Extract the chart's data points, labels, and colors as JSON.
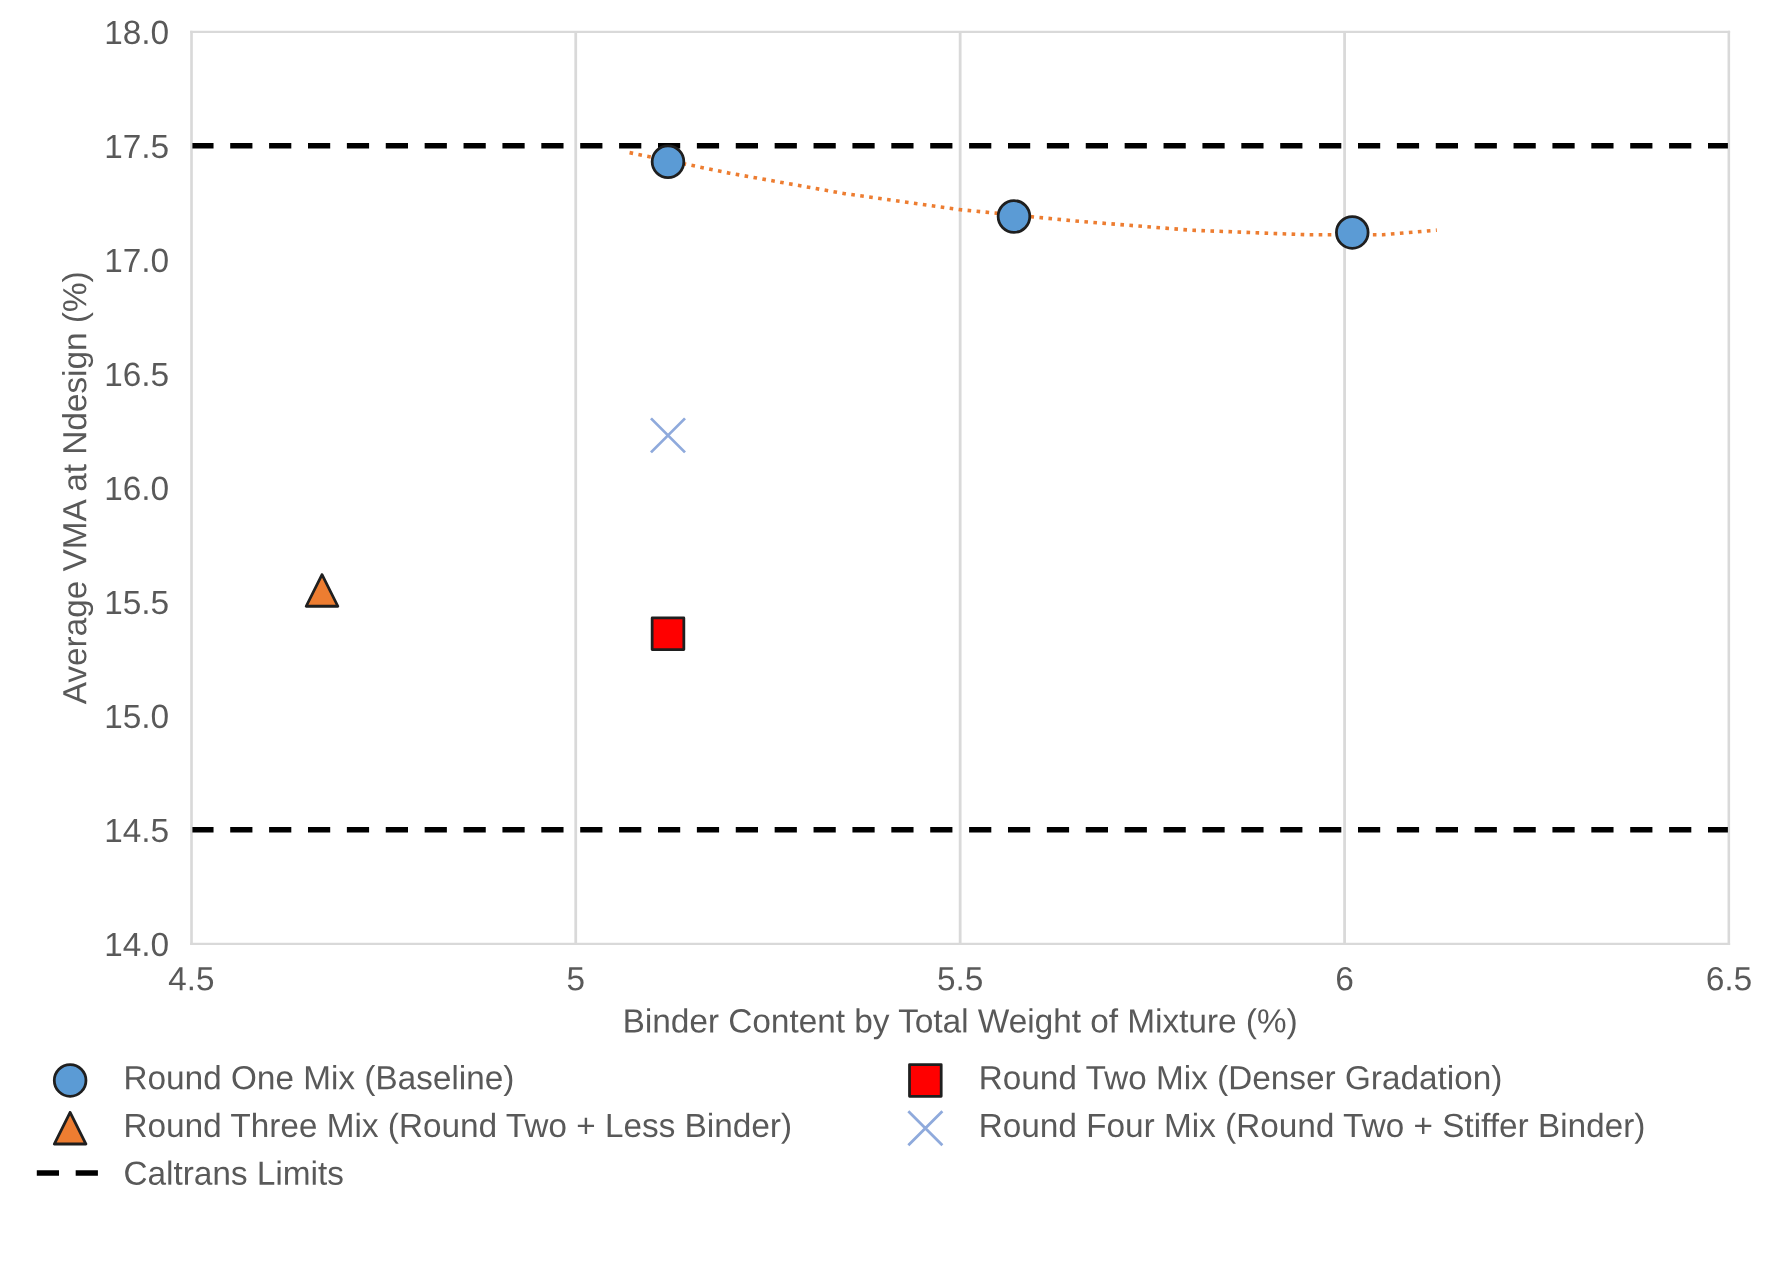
{
  "chart_data": {
    "type": "scatter",
    "xlabel": "Binder Content by Total Weight of Mixture (%)",
    "ylabel": "Average VMA at Ndesign (%)",
    "xlim": [
      4.5,
      6.5
    ],
    "xticks": [
      4.5,
      5,
      5.5,
      6,
      6.5
    ],
    "ylim": [
      14.0,
      18.0
    ],
    "yticks": [
      {
        "value": 14.0,
        "label": "14.0"
      },
      {
        "value": 14.5,
        "label": "14.5"
      },
      {
        "value": 15.0,
        "label": "15.0"
      },
      {
        "value": 15.5,
        "label": "15.5"
      },
      {
        "value": 16.0,
        "label": "16.0"
      },
      {
        "value": 16.5,
        "label": "16.5"
      },
      {
        "value": 17.0,
        "label": "17.0"
      },
      {
        "value": 17.5,
        "label": "17.5"
      },
      {
        "value": 18.0,
        "label": "18.0"
      }
    ],
    "grid": "x",
    "legend": "bottom",
    "series": [
      {
        "name": "Round One Mix (Baseline)",
        "color": "#5b9bd5",
        "marker": "circle",
        "x": [
          5.12,
          5.57,
          6.01
        ],
        "values": [
          17.43,
          17.19,
          17.12
        ]
      },
      {
        "name": "Round Two Mix (Denser Gradation)",
        "color": "#ff0000",
        "marker": "square",
        "x": [
          5.12
        ],
        "values": [
          15.36
        ]
      },
      {
        "name": "Round Three Mix (Round Two + Less Binder)",
        "color": "#ed7d31",
        "marker": "triangle",
        "x": [
          4.67
        ],
        "values": [
          15.55
        ]
      },
      {
        "name": "Round Four Mix (Round Two + Stiffer Binder)",
        "color": "#8faadc",
        "marker": "cross",
        "x": [
          5.12
        ],
        "values": [
          16.23
        ]
      },
      {
        "type": "line",
        "color": "#ed7d31",
        "line_style": "dotted",
        "x": [
          5.07,
          5.2,
          5.35,
          5.5,
          5.65,
          5.8,
          5.95,
          6.05,
          6.12
        ],
        "values": [
          17.47,
          17.38,
          17.29,
          17.22,
          17.17,
          17.13,
          17.11,
          17.11,
          17.13
        ]
      }
    ],
    "ref_lines": [
      {
        "axis": "y",
        "value": 17.5,
        "label": "Caltrans Limits",
        "color": "#000000",
        "line_style": "dashed"
      },
      {
        "axis": "y",
        "value": 14.5,
        "color": "#000000",
        "line_style": "dashed"
      }
    ]
  }
}
